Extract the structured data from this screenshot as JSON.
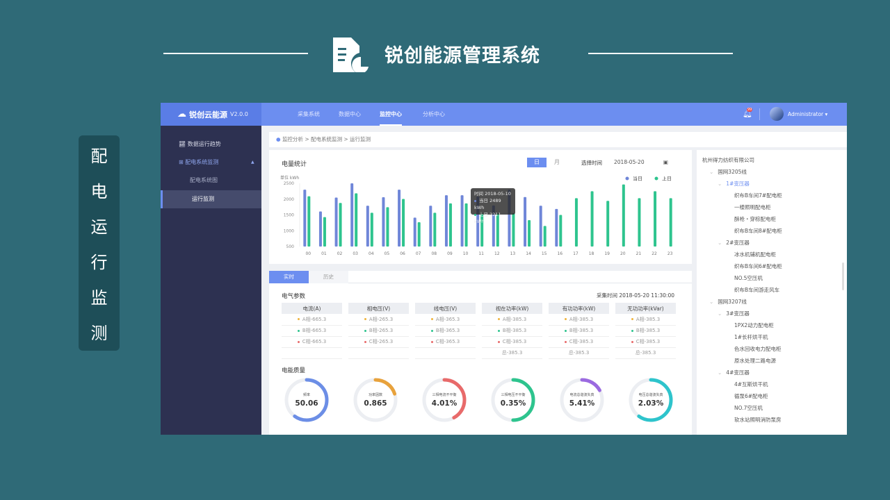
{
  "slide": {
    "title": "锐创能源管理系统",
    "side_label": [
      "配",
      "电",
      "运",
      "行",
      "监",
      "测"
    ],
    "title_icon": "document-chart-icon"
  },
  "app": {
    "brand": "锐创云能源",
    "version": "V2.0.0",
    "nav": [
      "采集系统",
      "数据中心",
      "监控中心",
      "分析中心"
    ],
    "nav_active": 2,
    "user": "Administrator",
    "notification_badge": "99",
    "sidebar": [
      {
        "label": "数据运行趋势",
        "icon": "chart-trend-icon"
      },
      {
        "label": "配电系统监测",
        "icon": "plus-box-icon"
      },
      {
        "label": "配电系统图",
        "sub": true
      },
      {
        "label": "运行监测",
        "sub": true,
        "active": true
      }
    ],
    "breadcrumb": "监控分析 > 配电系统监测 > 运行监测",
    "energy": {
      "title": "电量统计",
      "tab_day": "日",
      "tab_month": "月",
      "date_label": "选择时间",
      "date": "2018-05-20",
      "unit": "单位  kWh",
      "tooltip": {
        "time": "时间 2018-05-10",
        "today": "当日 2489 kWh",
        "yesterday": "上日 2211 kWh"
      }
    },
    "tabs": [
      "实时",
      "历史"
    ],
    "params": {
      "title": "电气参数",
      "time": "采集时间  2018-05-20  11:30:00",
      "columns": [
        {
          "head": "电流(A)",
          "rows": [
            "A相-665.3",
            "B相-665.3",
            "C相-665.3",
            ""
          ]
        },
        {
          "head": "相电压(V)",
          "rows": [
            "A相-265.3",
            "B相-265.3",
            "C相-265.3",
            ""
          ]
        },
        {
          "head": "线电压(V)",
          "rows": [
            "A相-365.3",
            "B相-365.3",
            "C相-365.3",
            ""
          ]
        },
        {
          "head": "视在功率(kW)",
          "rows": [
            "A相-385.3",
            "B相-385.3",
            "C相-385.3",
            "总-385.3"
          ]
        },
        {
          "head": "有功功率(kW)",
          "rows": [
            "A相-385.3",
            "B相-385.3",
            "C相-385.3",
            "总-385.3"
          ]
        },
        {
          "head": "无功功率(kVar)",
          "rows": [
            "A相-385.3",
            "B相-385.3",
            "C相-385.3",
            "总-385.3"
          ]
        }
      ],
      "phase_colors": [
        "#f0b43c",
        "#2ec48e",
        "#e86a6a"
      ]
    },
    "quality": {
      "title": "电能质量",
      "gauges": [
        {
          "label": "频率",
          "value": "50.06",
          "fill": 0.6,
          "color": "#6c8ee6"
        },
        {
          "label": "功率因数",
          "value": "0.865",
          "fill": 0.2,
          "color": "#e8a23c"
        },
        {
          "label": "三相电流不平衡",
          "value": "4.01%",
          "fill": 0.42,
          "color": "#e86a6a"
        },
        {
          "label": "三相电压不平衡",
          "value": "0.35%",
          "fill": 0.5,
          "color": "#2ec48e"
        },
        {
          "label": "电流总谐波失真",
          "value": "5.41%",
          "fill": 0.17,
          "color": "#9b6ae0"
        },
        {
          "label": "电压总谐波失真",
          "value": "2.03%",
          "fill": 0.6,
          "color": "#2ec4cc"
        }
      ]
    },
    "tree": [
      {
        "t": "杭州得力纺织有限公司",
        "l": 0
      },
      {
        "t": "国网3205线",
        "l": 1
      },
      {
        "t": "1#变压器",
        "l": 2,
        "sel": true
      },
      {
        "t": "织布B车间7#配电柜",
        "l": 3
      },
      {
        "t": "一楼照明配电柜",
        "l": 3
      },
      {
        "t": "酥枪・穿棕配电柜",
        "l": 3
      },
      {
        "t": "织布B车间8#配电柜",
        "l": 3
      },
      {
        "t": "2#变压器",
        "l": 2
      },
      {
        "t": "冰水机辅机配电柜",
        "l": 3
      },
      {
        "t": "织布B车间6#配电柜",
        "l": 3
      },
      {
        "t": "NO.5空压机",
        "l": 3
      },
      {
        "t": "织布B车间游走风车",
        "l": 3
      },
      {
        "t": "国网3207线",
        "l": 1
      },
      {
        "t": "3#变压器",
        "l": 2
      },
      {
        "t": "1PX2动力配电柜",
        "l": 3
      },
      {
        "t": "1#长杆烘干机",
        "l": 3
      },
      {
        "t": "色水回收电力配电柜",
        "l": 3
      },
      {
        "t": "原水处理二路电源",
        "l": 3
      },
      {
        "t": "4#变压器",
        "l": 2
      },
      {
        "t": "4#互斯烘干机",
        "l": 3
      },
      {
        "t": "循泵6#配电柜",
        "l": 3
      },
      {
        "t": "NO.7空压机",
        "l": 3
      },
      {
        "t": "软水站照明消防泵房",
        "l": 3
      }
    ]
  },
  "chart_data": {
    "type": "bar",
    "title": "电量统计",
    "ylabel": "单位  kWh",
    "ylim": [
      500,
      2500
    ],
    "yticks": [
      500,
      1000,
      1500,
      2000,
      2500
    ],
    "categories": [
      "00",
      "01",
      "02",
      "03",
      "04",
      "05",
      "06",
      "07",
      "08",
      "09",
      "10",
      "11",
      "12",
      "13",
      "14",
      "15",
      "16",
      "17",
      "18",
      "19",
      "20",
      "21",
      "22",
      "23"
    ],
    "series": [
      {
        "name": "当日",
        "color": "#6f86d8",
        "values": [
          2300,
          1610,
          2050,
          2500,
          1790,
          2060,
          2300,
          1415,
          1790,
          2125,
          2125,
          2080,
          1800,
          2300,
          2065,
          1790,
          1690,
          null,
          null,
          null,
          null,
          null,
          null,
          null
        ]
      },
      {
        "name": "上日",
        "color": "#2ec48e",
        "values": [
          2090,
          1430,
          1880,
          2185,
          1570,
          1745,
          2005,
          1270,
          1570,
          1865,
          1865,
          1560,
          1560,
          1560,
          1335,
          1150,
          1500,
          2030,
          2250,
          1945,
          2465,
          2030,
          2250,
          2030
        ]
      }
    ],
    "legend": "top-right",
    "grid": false
  }
}
